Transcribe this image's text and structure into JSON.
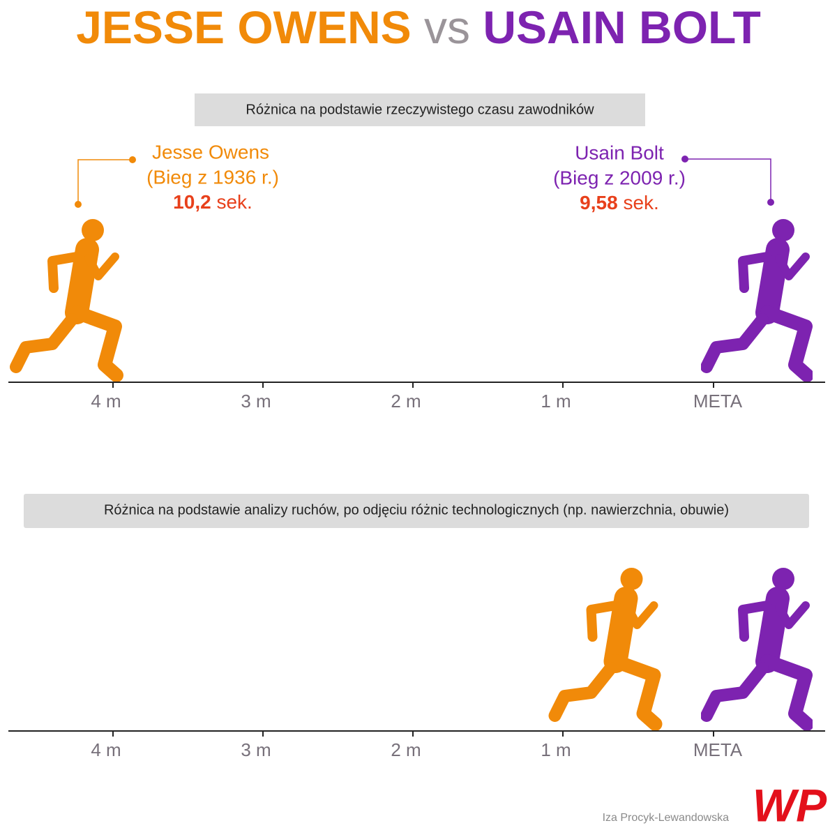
{
  "header": {
    "title_left": "JESSE OWENS",
    "title_mid": "vs",
    "title_right": "USAIN BOLT"
  },
  "sections": [
    {
      "caption": "Różnica na podstawie rzeczywistego czasu zawodników",
      "owens": {
        "name": "Jesse Owens",
        "race": "(Bieg z 1936 r.)",
        "time": "10,2",
        "unit": "sek."
      },
      "bolt": {
        "name": "Usain Bolt",
        "race": "(Bieg z 2009 r.)",
        "time": "9,58",
        "unit": "sek."
      },
      "axis_labels": [
        "4 m",
        "3 m",
        "2 m",
        "1 m",
        "META"
      ]
    },
    {
      "caption": "Różnica na podstawie analizy ruchów, po odjęciu różnic technologicznych (np. nawierzchnia, obuwie)",
      "axis_labels": [
        "4 m",
        "3 m",
        "2 m",
        "1 m",
        "META"
      ]
    }
  ],
  "footer": {
    "author": "Iza Procyk-Lewandowska",
    "logo": "WP"
  }
}
